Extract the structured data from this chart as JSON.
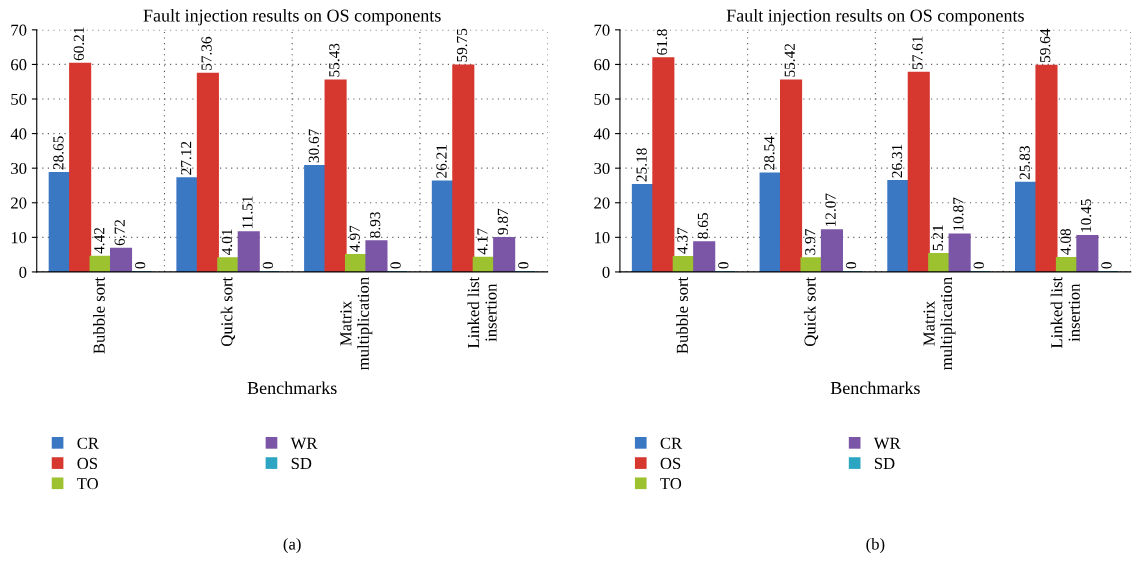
{
  "chart_data": [
    {
      "type": "bar",
      "title": "Fault injection results on OS components",
      "xlabel": "Benchmarks",
      "categories": [
        "Bubble sort",
        "Quick sort",
        "Matrix multiplication",
        "Linked list insertion"
      ],
      "series": [
        {
          "name": "CR",
          "color": "#3b78c4",
          "values": [
            28.65,
            27.12,
            30.67,
            26.21
          ]
        },
        {
          "name": "OS",
          "color": "#d6372f",
          "values": [
            60.21,
            57.36,
            55.43,
            59.75
          ]
        },
        {
          "name": "TO",
          "color": "#9cc230",
          "values": [
            4.42,
            4.01,
            4.97,
            4.17
          ]
        },
        {
          "name": "WR",
          "color": "#7b55a6",
          "values": [
            6.72,
            11.51,
            8.93,
            9.87
          ]
        },
        {
          "name": "SD",
          "color": "#2ba5c2",
          "values": [
            0,
            0,
            0,
            0
          ]
        }
      ],
      "ylim": [
        0,
        70
      ],
      "yticks": [
        0,
        10,
        20,
        30,
        40,
        50,
        60,
        70
      ],
      "grid": true,
      "legend": "bottom",
      "data_labels": true,
      "annotations": [
        "(a)"
      ]
    },
    {
      "type": "bar",
      "title": "Fault injection results on OS components",
      "xlabel": "Benchmarks",
      "categories": [
        "Bubble sort",
        "Quick sort",
        "Matrix multiplication",
        "Linked list insertion"
      ],
      "series": [
        {
          "name": "CR",
          "color": "#3b78c4",
          "values": [
            25.18,
            28.54,
            26.31,
            25.83
          ]
        },
        {
          "name": "OS",
          "color": "#d6372f",
          "values": [
            61.8,
            55.42,
            57.61,
            59.64
          ]
        },
        {
          "name": "TO",
          "color": "#9cc230",
          "values": [
            4.37,
            3.97,
            5.21,
            4.08
          ]
        },
        {
          "name": "WR",
          "color": "#7b55a6",
          "values": [
            8.65,
            12.07,
            10.87,
            10.45
          ]
        },
        {
          "name": "SD",
          "color": "#2ba5c2",
          "values": [
            0,
            0,
            0,
            0
          ]
        }
      ],
      "ylim": [
        0,
        70
      ],
      "yticks": [
        0,
        10,
        20,
        30,
        40,
        50,
        60,
        70
      ],
      "grid": true,
      "legend": "bottom",
      "data_labels": true,
      "annotations": [
        "(b)"
      ]
    }
  ]
}
